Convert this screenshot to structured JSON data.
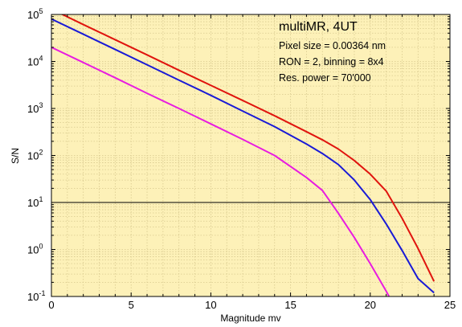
{
  "chart_data": {
    "type": "line",
    "title": "",
    "xlabel": "Magnitude mv",
    "ylabel": "S/N",
    "xlim": [
      0,
      25
    ],
    "ylim": [
      0.1,
      100000
    ],
    "yscale": "log",
    "grid": true,
    "background_color": "#fdf1b8",
    "grid_color": "#d8c98e",
    "x_ticks": [
      "0",
      "5",
      "10",
      "15",
      "20",
      "25"
    ],
    "y_ticks": [
      {
        "base": "10",
        "exp": "-1"
      },
      {
        "base": "10",
        "exp": "0"
      },
      {
        "base": "10",
        "exp": "1"
      },
      {
        "base": "10",
        "exp": "2"
      },
      {
        "base": "10",
        "exp": "3"
      },
      {
        "base": "10",
        "exp": "4"
      },
      {
        "base": "10",
        "exp": "5"
      }
    ],
    "reference_line": {
      "y": 10,
      "color": "#000000"
    },
    "annotations": {
      "title": "multiMR, 4UT",
      "lines": [
        "Pixel size = 0.00364 nm",
        "RON = 2, binning = 8x4",
        "Res. power = 70'000"
      ]
    },
    "series": [
      {
        "color": "#e0140e",
        "x": [
          0,
          2,
          4,
          6,
          8,
          10,
          12,
          14,
          16,
          17,
          18,
          19,
          20,
          21,
          22,
          23,
          24
        ],
        "y": [
          130000,
          61000,
          29000,
          13800,
          6500,
          3100,
          1480,
          700,
          320,
          215,
          137,
          78,
          40,
          17.5,
          4.6,
          1.05,
          0.21
        ]
      },
      {
        "color": "#1a1ad6",
        "x": [
          0,
          2,
          4,
          6,
          8,
          10,
          12,
          14,
          16,
          17,
          18,
          19,
          20,
          21,
          22,
          23,
          24
        ],
        "y": [
          80000,
          38000,
          18000,
          8500,
          4000,
          1900,
          880,
          410,
          175,
          110,
          64,
          30,
          11.5,
          3.5,
          0.95,
          0.24,
          0.12
        ]
      },
      {
        "color": "#e81ce0",
        "x": [
          0,
          2,
          4,
          6,
          8,
          10,
          12,
          14,
          16,
          17,
          18,
          19,
          20,
          21,
          22
        ],
        "y": [
          20000,
          9500,
          4500,
          2100,
          1000,
          470,
          220,
          100,
          34,
          18,
          5.9,
          1.8,
          0.5,
          0.13,
          0.03
        ]
      }
    ]
  }
}
